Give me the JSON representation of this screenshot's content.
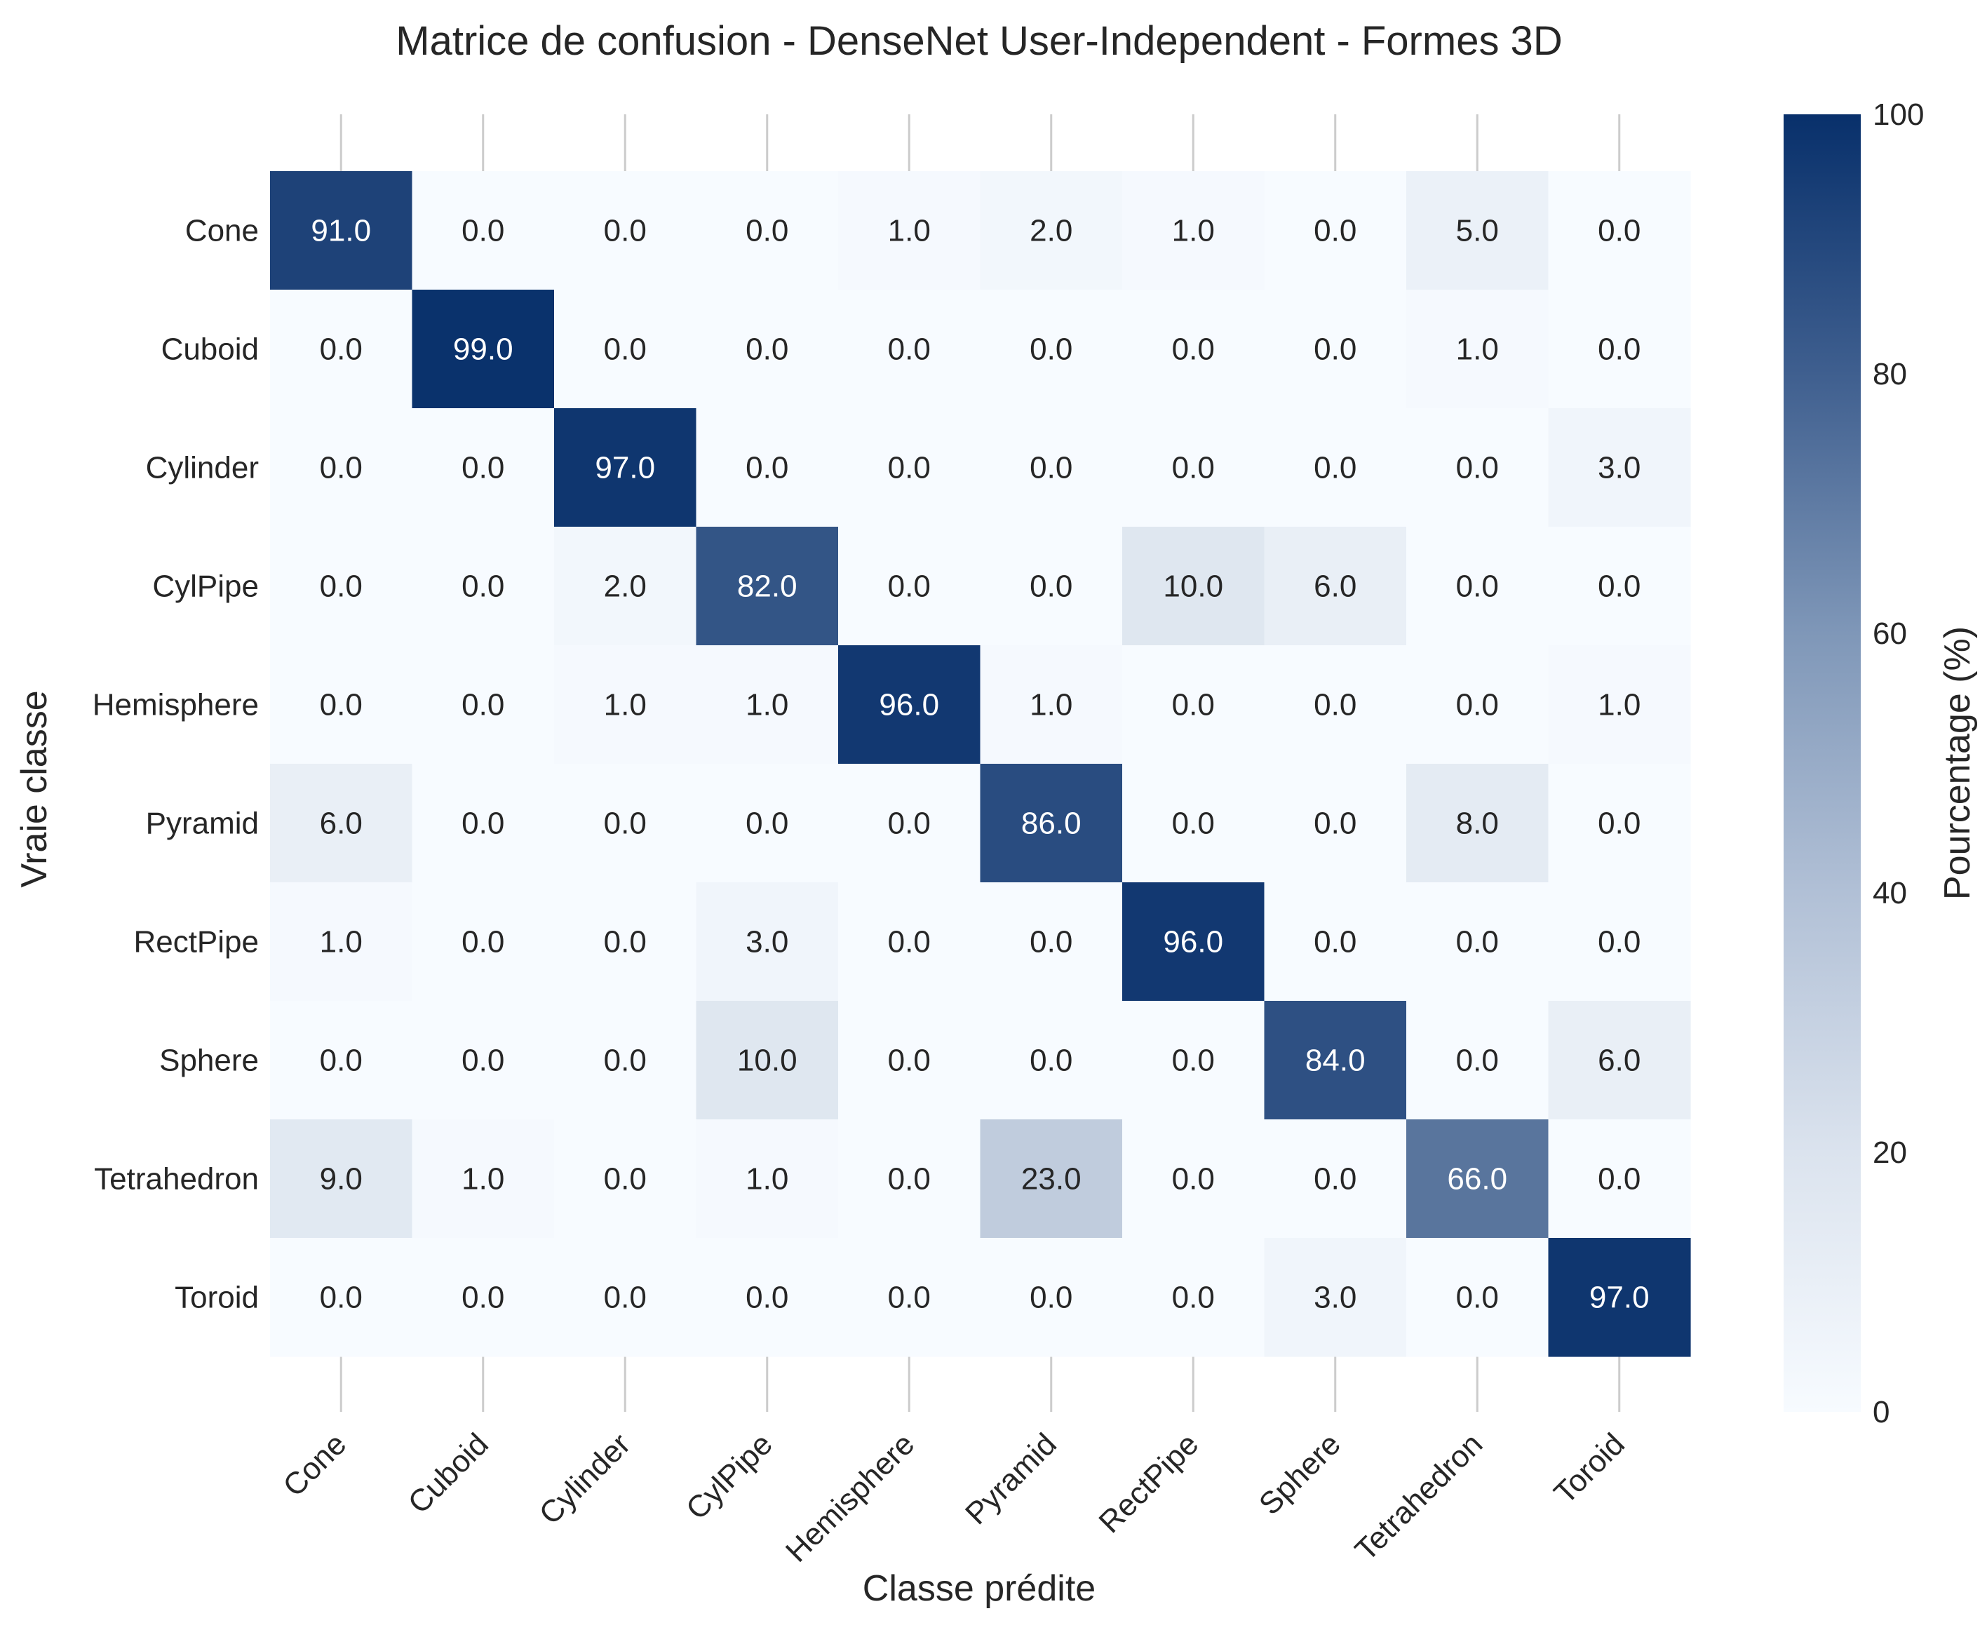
{
  "chart_data": {
    "type": "heatmap",
    "title": "Matrice de confusion - DenseNet User-Independent - Formes 3D",
    "xlabel": "Classe prédite",
    "ylabel": "Vraie classe",
    "x_categories": [
      "Cone",
      "Cuboid",
      "Cylinder",
      "CylPipe",
      "Hemisphere",
      "Pyramid",
      "RectPipe",
      "Sphere",
      "Tetrahedron",
      "Toroid"
    ],
    "y_categories": [
      "Cone",
      "Cuboid",
      "Cylinder",
      "CylPipe",
      "Hemisphere",
      "Pyramid",
      "RectPipe",
      "Sphere",
      "Tetrahedron",
      "Toroid"
    ],
    "values": [
      [
        91.0,
        0.0,
        0.0,
        0.0,
        1.0,
        2.0,
        1.0,
        0.0,
        5.0,
        0.0
      ],
      [
        0.0,
        99.0,
        0.0,
        0.0,
        0.0,
        0.0,
        0.0,
        0.0,
        1.0,
        0.0
      ],
      [
        0.0,
        0.0,
        97.0,
        0.0,
        0.0,
        0.0,
        0.0,
        0.0,
        0.0,
        3.0
      ],
      [
        0.0,
        0.0,
        2.0,
        82.0,
        0.0,
        0.0,
        10.0,
        6.0,
        0.0,
        0.0
      ],
      [
        0.0,
        0.0,
        1.0,
        1.0,
        96.0,
        1.0,
        0.0,
        0.0,
        0.0,
        1.0
      ],
      [
        6.0,
        0.0,
        0.0,
        0.0,
        0.0,
        86.0,
        0.0,
        0.0,
        8.0,
        0.0
      ],
      [
        1.0,
        0.0,
        0.0,
        3.0,
        0.0,
        0.0,
        96.0,
        0.0,
        0.0,
        0.0
      ],
      [
        0.0,
        0.0,
        0.0,
        10.0,
        0.0,
        0.0,
        0.0,
        84.0,
        0.0,
        6.0
      ],
      [
        9.0,
        1.0,
        0.0,
        1.0,
        0.0,
        23.0,
        0.0,
        0.0,
        66.0,
        0.0
      ],
      [
        0.0,
        0.0,
        0.0,
        0.0,
        0.0,
        0.0,
        0.0,
        3.0,
        0.0,
        97.0
      ]
    ],
    "colorbar": {
      "label": "Pourcentage (%)",
      "min": 0,
      "max": 100,
      "ticks": [
        "0",
        "20",
        "40",
        "60",
        "80",
        "100"
      ]
    },
    "colors": {
      "low": "#f7fbff",
      "high": "#08306b",
      "text_light": "#ffffff",
      "text_dark": "#262626",
      "grid": "#cccccc"
    },
    "grid": true
  }
}
